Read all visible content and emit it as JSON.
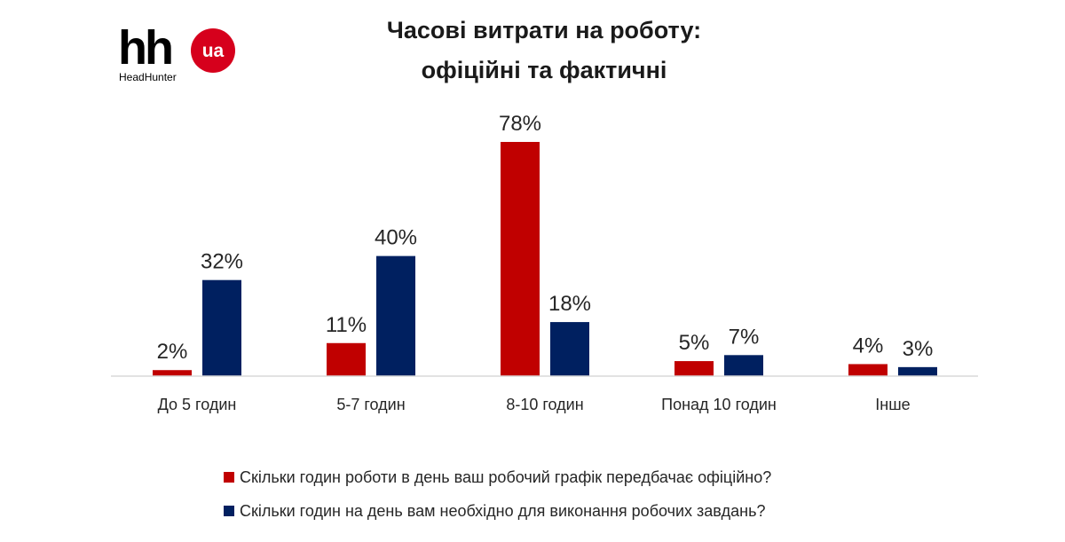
{
  "logo": {
    "main": "hh",
    "badge": "ua",
    "sub": "HeadHunter",
    "badge_color": "#d6001c"
  },
  "chart_data": {
    "type": "bar",
    "title": [
      "Часові витрати на роботу:",
      "офіційні та фактичні"
    ],
    "categories": [
      "До 5 годин",
      "5-7 годин",
      "8-10 годин",
      "Понад 10 годин",
      "Інше"
    ],
    "series": [
      {
        "name": "Скільки годин роботи в день ваш робочий графік передбачає офіційно?",
        "color": "#c00000",
        "values": [
          2,
          11,
          78,
          5,
          4
        ],
        "labels": [
          "2%",
          "11%",
          "78%",
          "5%",
          "4%"
        ]
      },
      {
        "name": "Скільки годин на день вам необхідно для виконання робочих завдань?",
        "color": "#002060",
        "values": [
          32,
          40,
          18,
          7,
          3
        ],
        "labels": [
          "32%",
          "40%",
          "18%",
          "7%",
          "3%"
        ]
      }
    ],
    "ylim": [
      0,
      80
    ],
    "grid": false,
    "legend_position": "bottom"
  }
}
